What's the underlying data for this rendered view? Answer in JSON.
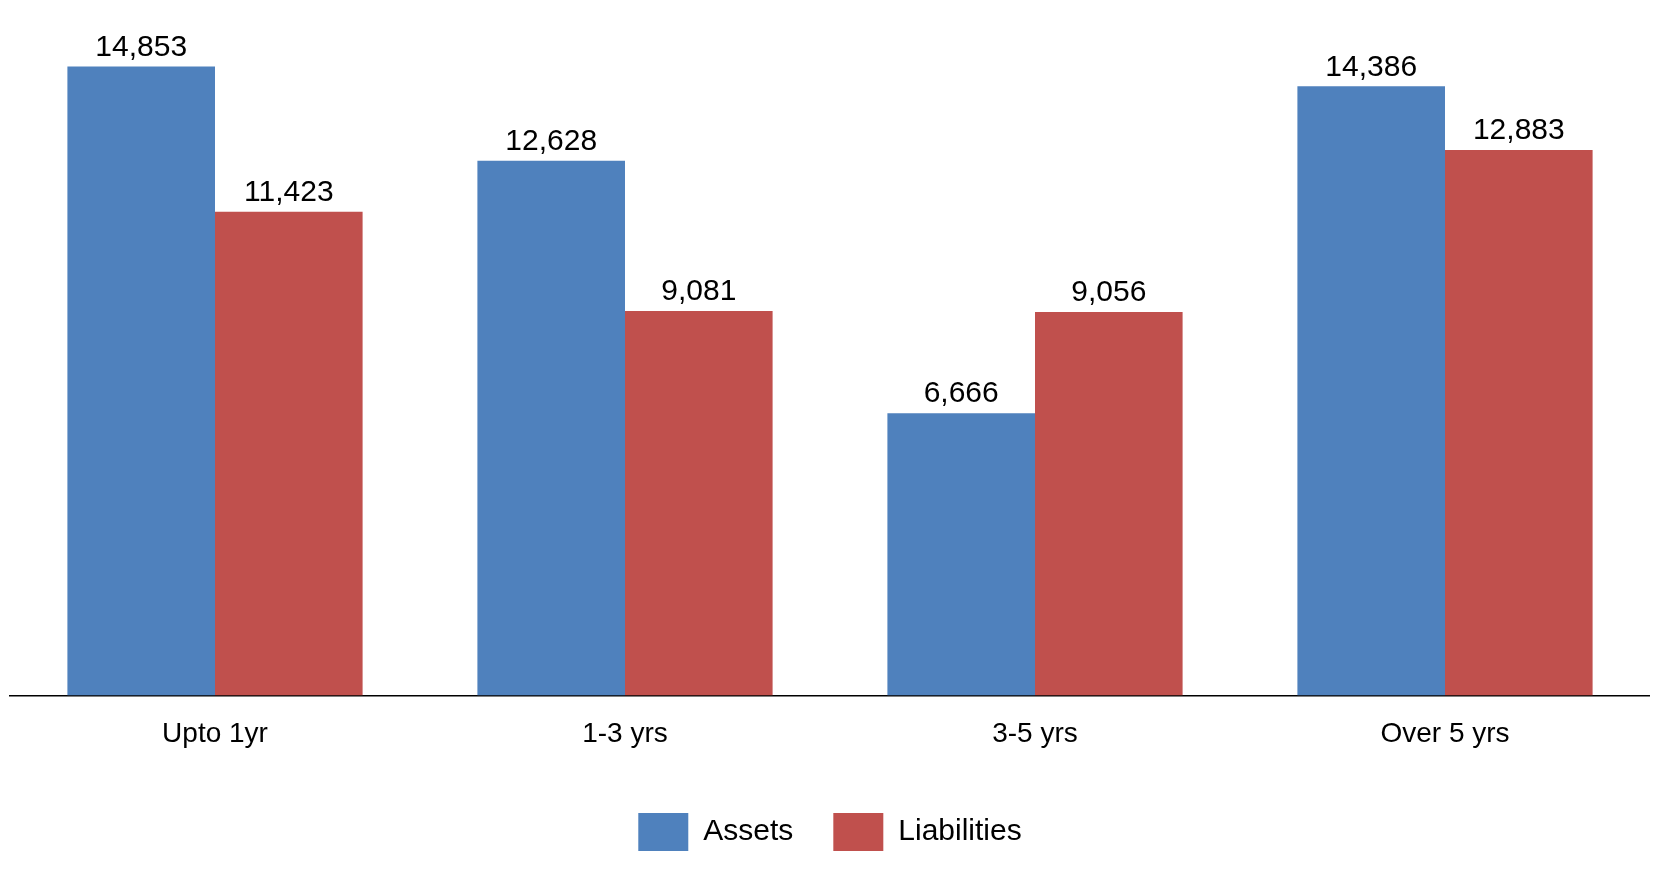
{
  "chart_data": {
    "type": "bar",
    "categories": [
      "Upto 1yr",
      "1-3 yrs",
      "3-5 yrs",
      "Over 5 yrs"
    ],
    "series": [
      {
        "name": "Assets",
        "color": "#4f81bd",
        "values": [
          14853,
          12628,
          6666,
          14386
        ],
        "value_labels": [
          "14,853",
          "12,628",
          "6,666",
          "14,386"
        ]
      },
      {
        "name": "Liabilities",
        "color": "#c0504d",
        "values": [
          11423,
          9081,
          9056,
          12883
        ],
        "value_labels": [
          "11,423",
          "9,081",
          "9,056",
          "12,883"
        ]
      }
    ],
    "legend": "bottom",
    "grid": false
  }
}
